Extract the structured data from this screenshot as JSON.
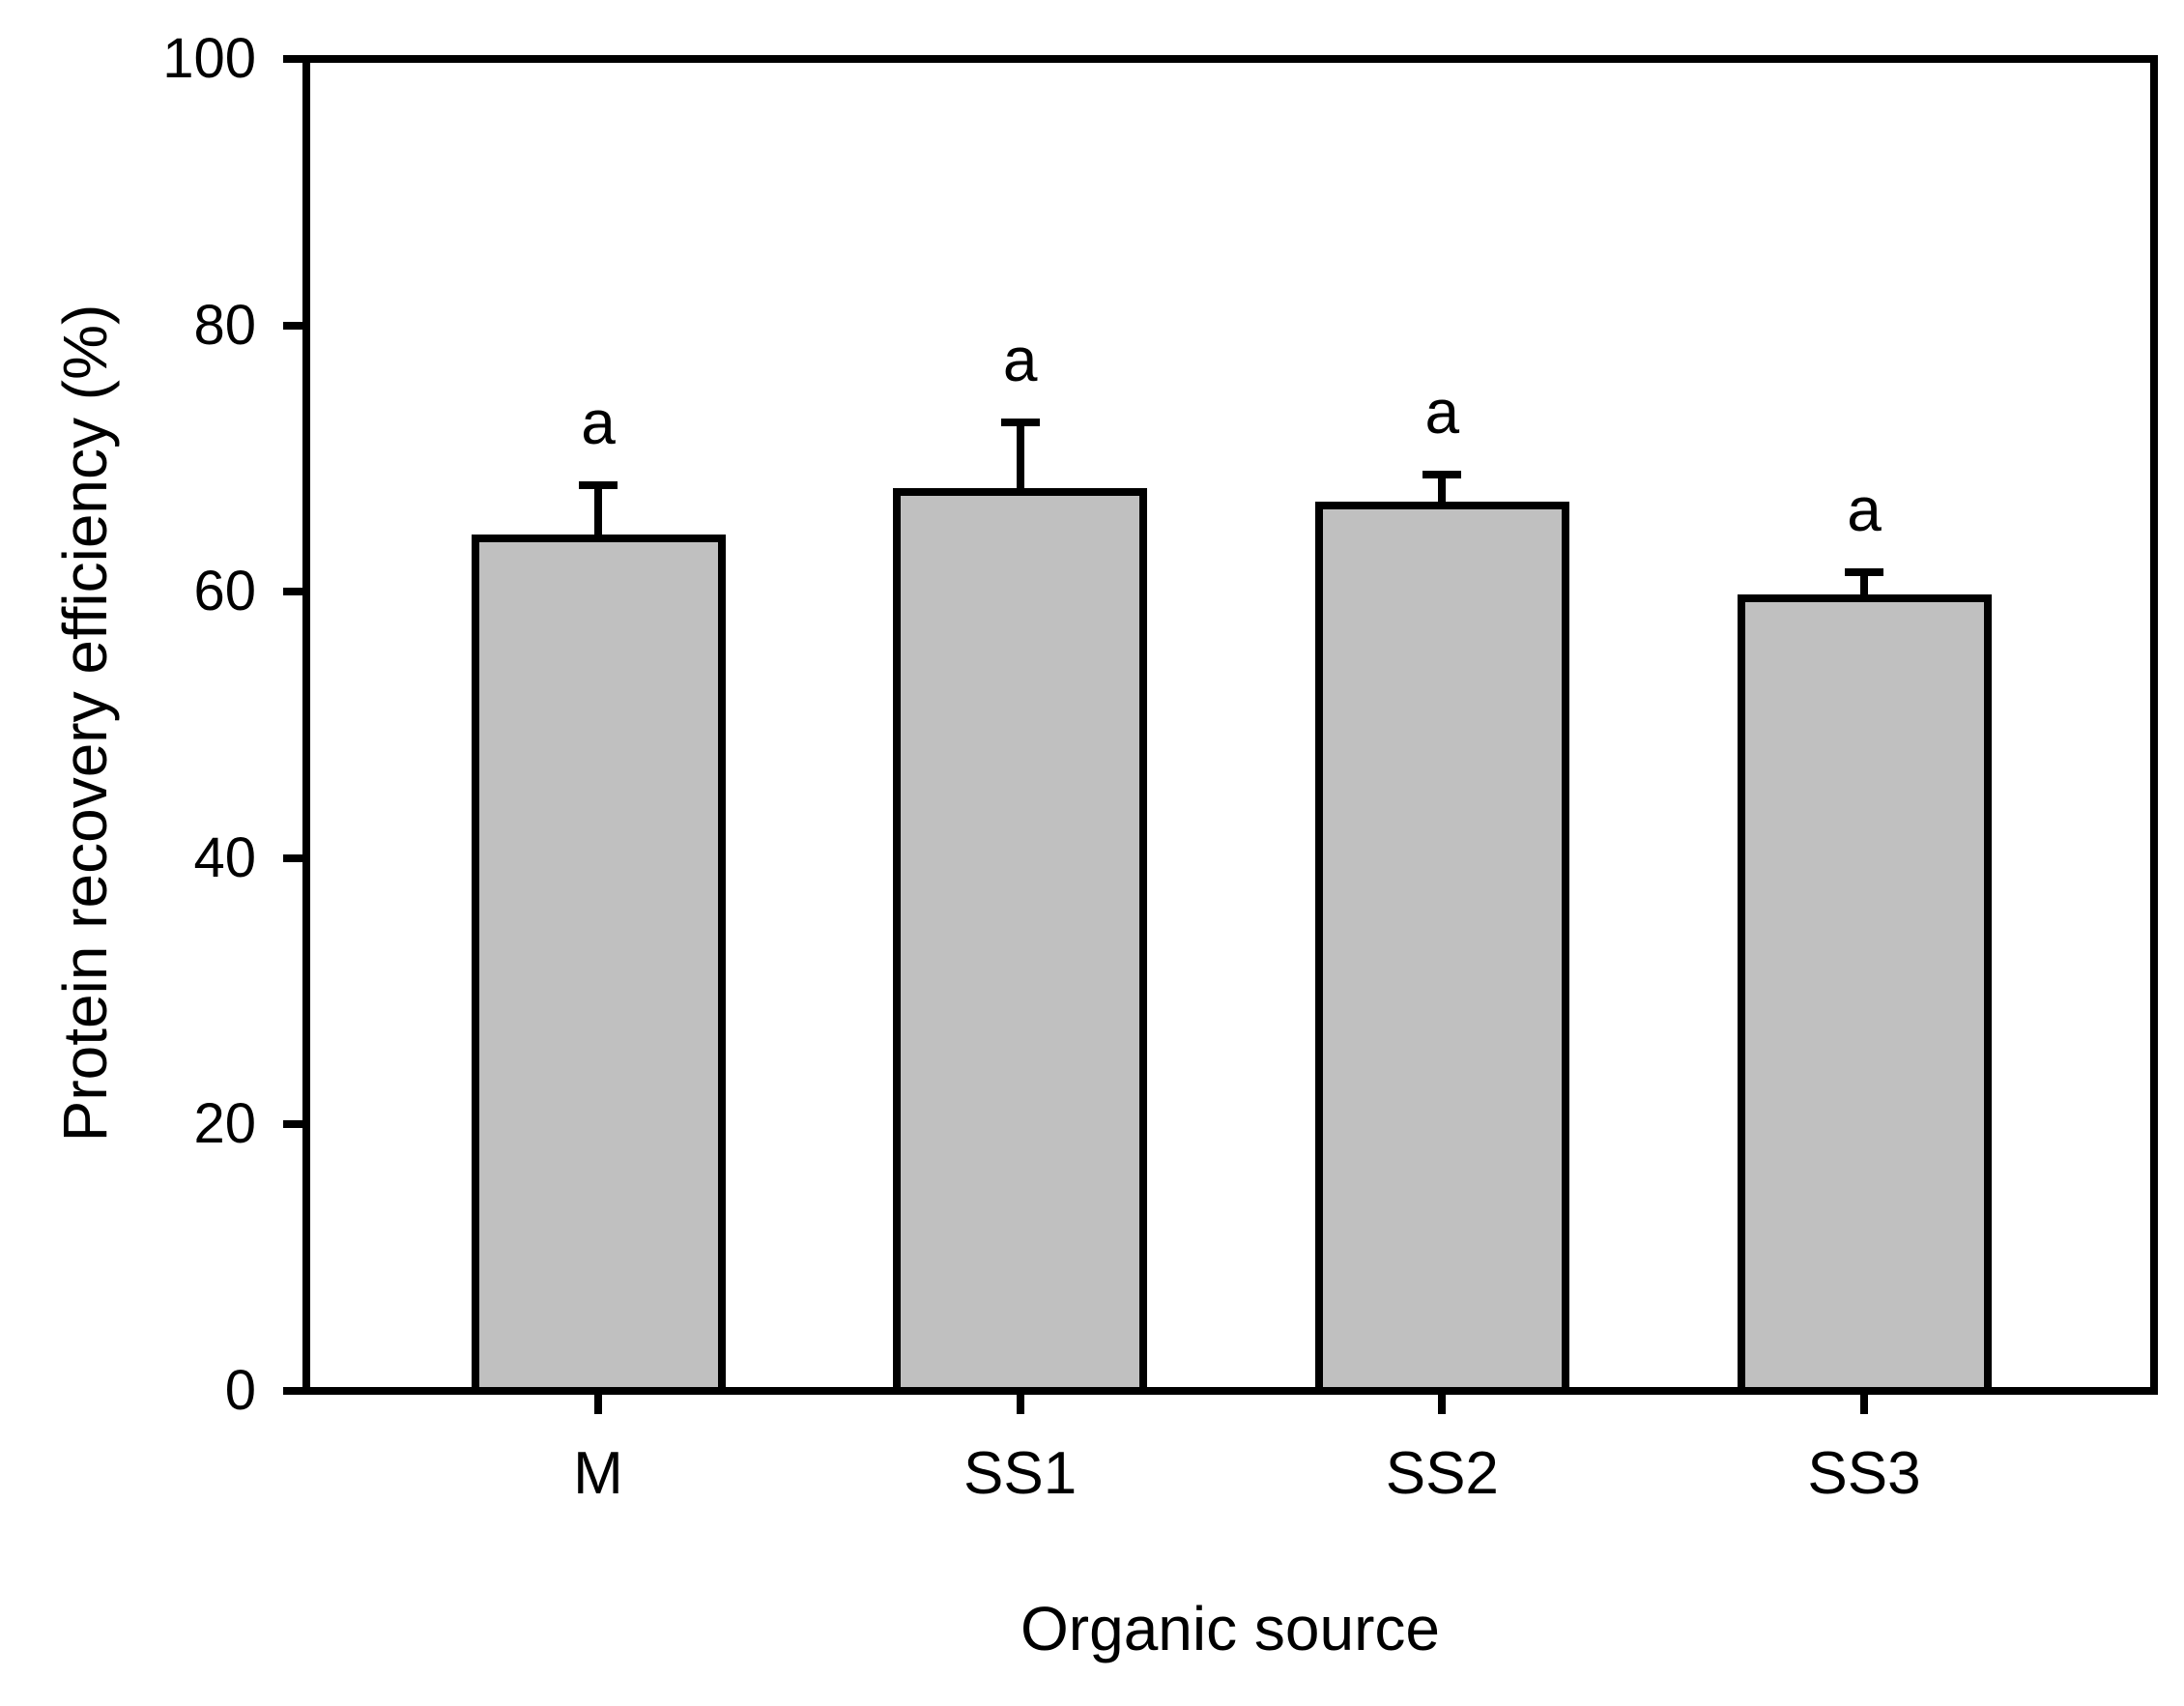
{
  "chart_data": {
    "type": "bar",
    "title": "",
    "xlabel": "Organic source",
    "ylabel": "Protein recovery efficiency (%)",
    "categories": [
      "M",
      "SS1",
      "SS2",
      "SS3"
    ],
    "values": [
      64,
      67.5,
      66.5,
      59.5
    ],
    "errors_upper": [
      4,
      5.2,
      2.3,
      2
    ],
    "significance_labels": [
      "a",
      "a",
      "a",
      "a"
    ],
    "ylim": [
      0,
      100
    ],
    "yticks": [
      0,
      20,
      40,
      60,
      80,
      100
    ],
    "ytick_labels": [
      "0",
      "20",
      "40",
      "60",
      "80",
      "100"
    ],
    "grid": false,
    "legend": null,
    "frame": "full-box",
    "bar_fill_color": "#c0c0c0",
    "bar_border_color": "#000000",
    "axis_color": "#000000",
    "background_color": "#ffffff"
  }
}
